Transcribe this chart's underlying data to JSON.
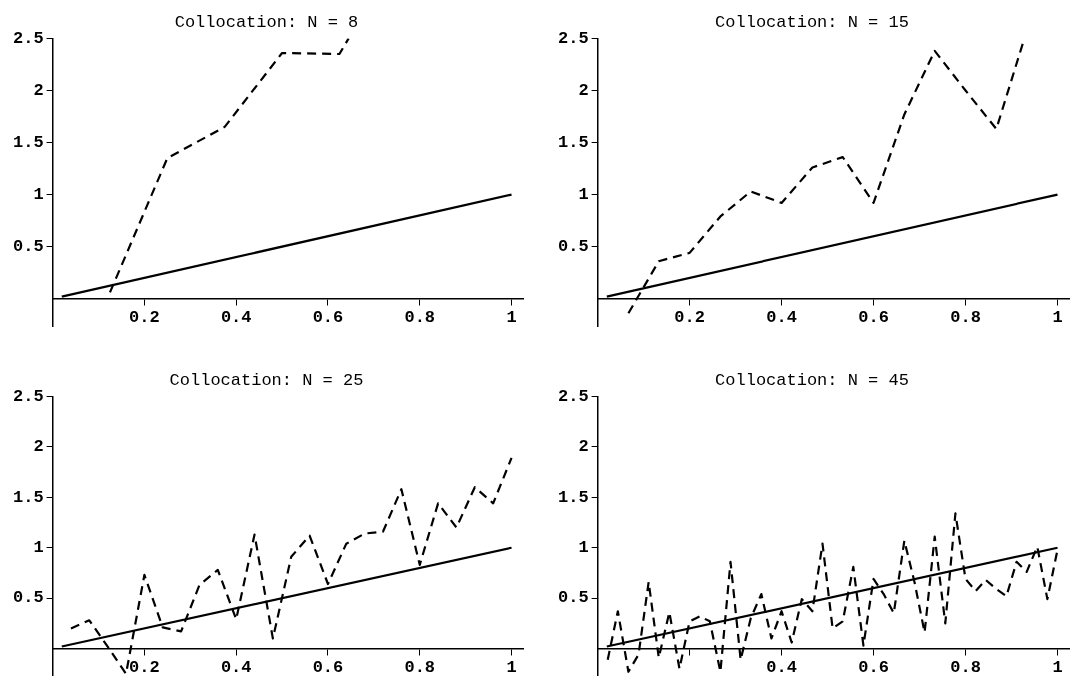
{
  "chart_data": [
    {
      "type": "line",
      "title": "Collocation: N = 8",
      "xlim": [
        0,
        1.025
      ],
      "ylim": [
        -0.27,
        2.5
      ],
      "xticks": [
        0.2,
        0.4,
        0.6,
        0.8,
        1
      ],
      "yticks": [
        0.5,
        1,
        1.5,
        2,
        2.5
      ],
      "marker": "none",
      "series": [
        {
          "color": "#000000",
          "line_style": "solid",
          "x": [
            0.02,
            1
          ],
          "values": [
            0.02,
            1
          ]
        },
        {
          "color": "#000000",
          "line_style": "dashed",
          "x": [
            0.125,
            0.25,
            0.375,
            0.5,
            0.625,
            0.645
          ],
          "values": [
            0.06,
            1.35,
            1.65,
            2.36,
            2.35,
            2.5
          ]
        }
      ]
    },
    {
      "type": "line",
      "title": "Collocation: N = 15",
      "xlim": [
        0,
        1.025
      ],
      "ylim": [
        -0.27,
        2.5
      ],
      "xticks": [
        0.2,
        0.4,
        0.6,
        0.8,
        1
      ],
      "yticks": [
        0.5,
        1,
        1.5,
        2,
        2.5
      ],
      "marker": "none",
      "series": [
        {
          "color": "#000000",
          "line_style": "solid",
          "x": [
            0.02,
            1
          ],
          "values": [
            0.02,
            1
          ]
        },
        {
          "color": "#000000",
          "line_style": "dashed",
          "x": [
            0.067,
            0.133,
            0.2,
            0.267,
            0.333,
            0.4,
            0.467,
            0.533,
            0.6,
            0.667,
            0.733,
            0.8,
            0.867,
            0.928
          ],
          "values": [
            -0.14,
            0.36,
            0.44,
            0.79,
            1.03,
            0.92,
            1.26,
            1.36,
            0.92,
            1.77,
            2.38,
            2.0,
            1.63,
            2.5
          ]
        }
      ]
    },
    {
      "type": "line",
      "title": "Collocation: N = 25",
      "xlim": [
        0,
        1.025
      ],
      "ylim": [
        -0.27,
        2.5
      ],
      "xticks": [
        0.2,
        0.4,
        0.6,
        0.8,
        1
      ],
      "yticks": [
        0.5,
        1,
        1.5,
        2,
        2.5
      ],
      "marker": "none",
      "series": [
        {
          "color": "#000000",
          "line_style": "solid",
          "x": [
            0.02,
            1
          ],
          "values": [
            0.02,
            1
          ]
        },
        {
          "color": "#000000",
          "line_style": "dashed",
          "x": [
            0.04,
            0.08,
            0.12,
            0.16,
            0.2,
            0.24,
            0.28,
            0.32,
            0.36,
            0.4,
            0.44,
            0.48,
            0.52,
            0.56,
            0.6,
            0.64,
            0.68,
            0.72,
            0.76,
            0.8,
            0.84,
            0.88,
            0.92,
            0.96,
            1
          ],
          "values": [
            0.2,
            0.28,
            0.02,
            -0.25,
            0.73,
            0.21,
            0.17,
            0.63,
            0.78,
            0.29,
            1.13,
            0.1,
            0.91,
            1.12,
            0.64,
            1.04,
            1.14,
            1.16,
            1.58,
            0.83,
            1.44,
            1.2,
            1.6,
            1.44,
            1.89
          ]
        }
      ]
    },
    {
      "type": "line",
      "title": "Collocation: N = 45",
      "xlim": [
        0,
        1.025
      ],
      "ylim": [
        -0.27,
        2.5
      ],
      "xticks": [
        {
          "value": 0.2,
          "label": null
        },
        0.4,
        0.6,
        0.8,
        1
      ],
      "yticks": [
        0.5,
        1,
        1.5,
        2,
        2.5
      ],
      "marker": "none",
      "series": [
        {
          "color": "#000000",
          "line_style": "solid",
          "x": [
            0.02,
            1
          ],
          "values": [
            0.02,
            1
          ]
        },
        {
          "color": "#000000",
          "line_style": "dashed",
          "x": [
            0.022,
            0.044,
            0.067,
            0.089,
            0.111,
            0.133,
            0.156,
            0.178,
            0.2,
            0.222,
            0.244,
            0.267,
            0.289,
            0.311,
            0.333,
            0.356,
            0.378,
            0.4,
            0.422,
            0.444,
            0.467,
            0.489,
            0.511,
            0.533,
            0.556,
            0.578,
            0.6,
            0.622,
            0.644,
            0.667,
            0.689,
            0.711,
            0.733,
            0.756,
            0.778,
            0.8,
            0.822,
            0.844,
            0.867,
            0.889,
            0.911,
            0.933,
            0.956,
            0.978,
            1
          ],
          "values": [
            -0.11,
            0.37,
            -0.23,
            -0.06,
            0.66,
            -0.09,
            0.36,
            -0.2,
            0.27,
            0.32,
            0.27,
            -0.23,
            0.86,
            -0.11,
            0.3,
            0.54,
            0.1,
            0.37,
            0.06,
            0.49,
            0.37,
            1.04,
            0.2,
            0.27,
            0.81,
            0.03,
            0.69,
            0.54,
            0.35,
            1.07,
            0.66,
            0.16,
            1.11,
            0.25,
            1.34,
            0.69,
            0.57,
            0.68,
            0.59,
            0.52,
            0.86,
            0.76,
            1.01,
            0.49,
            0.98
          ]
        }
      ]
    }
  ]
}
